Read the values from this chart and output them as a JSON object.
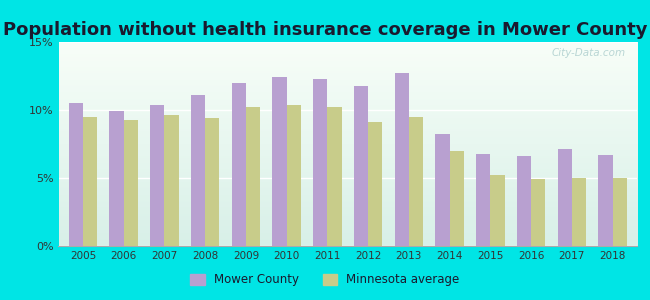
{
  "title": "Population without health insurance coverage in Mower County",
  "years": [
    2005,
    2006,
    2007,
    2008,
    2009,
    2010,
    2011,
    2012,
    2013,
    2014,
    2015,
    2016,
    2017,
    2018
  ],
  "mower_county": [
    10.5,
    9.9,
    10.4,
    11.1,
    12.0,
    12.4,
    12.3,
    11.8,
    12.7,
    8.2,
    6.8,
    6.6,
    7.1,
    6.7
  ],
  "mn_average": [
    9.5,
    9.3,
    9.6,
    9.4,
    10.2,
    10.4,
    10.2,
    9.1,
    9.5,
    7.0,
    5.2,
    4.9,
    5.0,
    5.0
  ],
  "mower_color": "#b8a0d0",
  "mn_color": "#c8cc8a",
  "bg_color": "#00e5e5",
  "ylim": [
    0,
    15
  ],
  "yticks": [
    0,
    5,
    10,
    15
  ],
  "ytick_labels": [
    "0%",
    "5%",
    "10%",
    "15%"
  ],
  "title_fontsize": 13,
  "legend_label_mower": "Mower County",
  "legend_label_mn": "Minnesota average"
}
